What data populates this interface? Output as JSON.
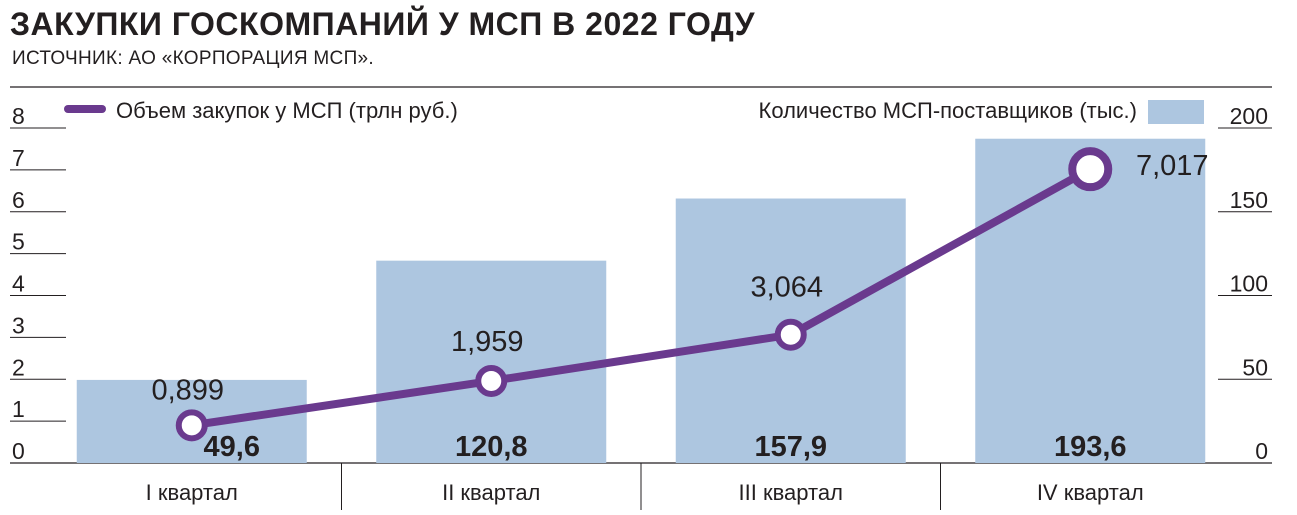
{
  "header": {
    "title": "ЗАКУПКИ ГОСКОМПАНИЙ У МСП В 2022 ГОДУ",
    "source": "ИСТОЧНИК: АО «КОРПОРАЦИЯ МСП»."
  },
  "colors": {
    "bar": "#adc6e0",
    "line": "#6a3a8e",
    "text": "#231f20"
  },
  "chart_data": {
    "type": "bar+line",
    "categories": [
      "I  квартал",
      "II  квартал",
      "III  квартал",
      "IV  квартал"
    ],
    "series": [
      {
        "name": "Количество МСП-поставщиков (тыс.)",
        "type": "bar",
        "axis": "right",
        "values": [
          49.6,
          120.8,
          157.9,
          193.6
        ],
        "labels": [
          "49,6",
          "120,8",
          "157,9",
          "193,6"
        ]
      },
      {
        "name": "Объем закупок у МСП (трлн руб.)",
        "type": "line",
        "axis": "left",
        "values": [
          0.899,
          1.959,
          3.064,
          7.017
        ],
        "labels": [
          "0,899",
          "1,959",
          "3,064",
          "7,017"
        ]
      }
    ],
    "left_axis": {
      "ticks": [
        "0",
        "1",
        "2",
        "3",
        "4",
        "5",
        "6",
        "7",
        "8"
      ],
      "ylim": [
        0,
        8
      ]
    },
    "right_axis": {
      "ticks": [
        "0",
        "50",
        "100",
        "150",
        "200"
      ],
      "ylim": [
        0,
        200
      ]
    },
    "legend": [
      "top-left",
      "top-right"
    ]
  }
}
